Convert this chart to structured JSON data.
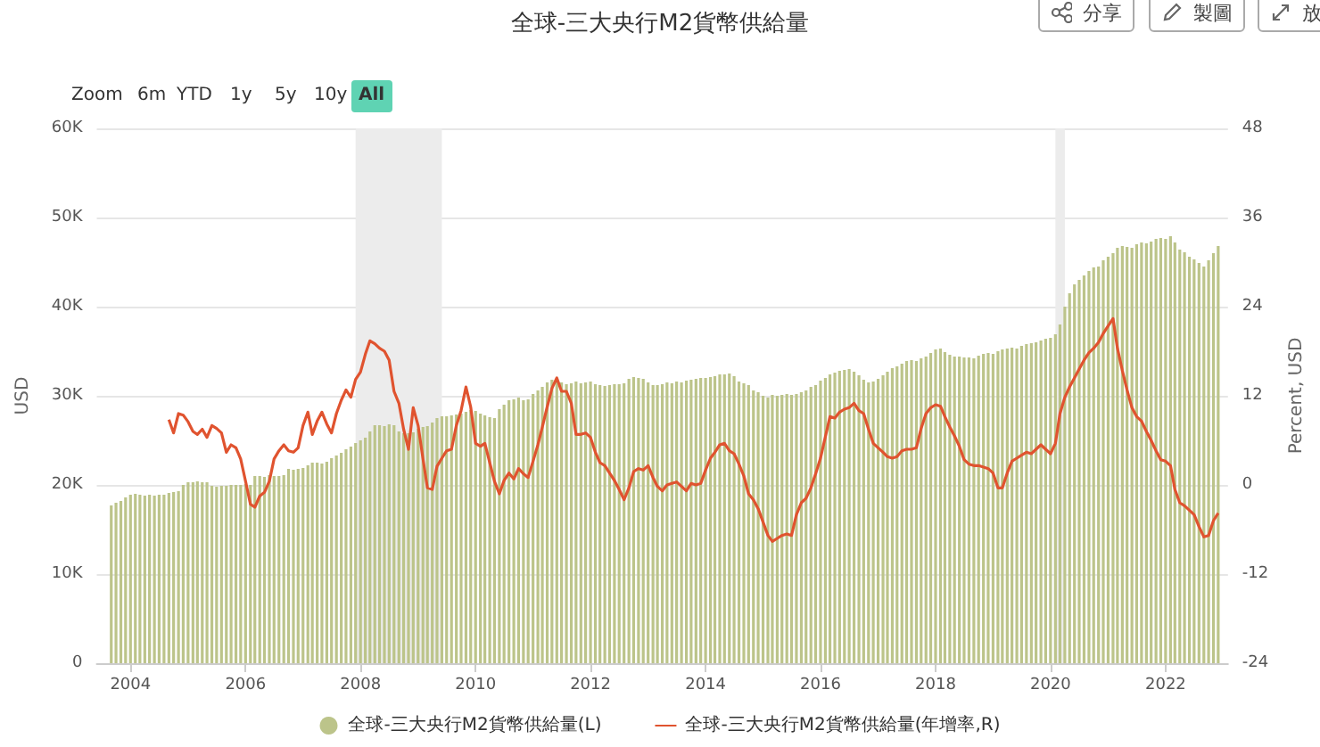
{
  "chart_data": {
    "type": "bar",
    "title": "全球-三大央行M2貨幣供給量",
    "ylabel": "USD",
    "y2label": "Percent, USD",
    "annotations": [
      "Zoom",
      "6m",
      "YTD",
      "1y",
      "5y",
      "10y",
      "All",
      "分享",
      "製圖",
      "放"
    ],
    "x": [
      "2003-09",
      "2003-10",
      "2003-11",
      "2003-12",
      "2004-01",
      "2004-02",
      "2004-03",
      "2004-04",
      "2004-05",
      "2004-06",
      "2004-07",
      "2004-08",
      "2004-09",
      "2004-10",
      "2004-11",
      "2004-12",
      "2005-01",
      "2005-02",
      "2005-03",
      "2005-04",
      "2005-05",
      "2005-06",
      "2005-07",
      "2005-08",
      "2005-09",
      "2005-10",
      "2005-11",
      "2005-12",
      "2006-01",
      "2006-02",
      "2006-03",
      "2006-04",
      "2006-05",
      "2006-06",
      "2006-07",
      "2006-08",
      "2006-09",
      "2006-10",
      "2006-11",
      "2006-12",
      "2007-01",
      "2007-02",
      "2007-03",
      "2007-04",
      "2007-05",
      "2007-06",
      "2007-07",
      "2007-08",
      "2007-09",
      "2007-10",
      "2007-11",
      "2007-12",
      "2008-01",
      "2008-02",
      "2008-03",
      "2008-04",
      "2008-05",
      "2008-06",
      "2008-07",
      "2008-08",
      "2008-09",
      "2008-10",
      "2008-11",
      "2008-12",
      "2009-01",
      "2009-02",
      "2009-03",
      "2009-04",
      "2009-05",
      "2009-06",
      "2009-07",
      "2009-08",
      "2009-09",
      "2009-10",
      "2009-11",
      "2009-12",
      "2010-01",
      "2010-02",
      "2010-03",
      "2010-04",
      "2010-05",
      "2010-06",
      "2010-07",
      "2010-08",
      "2010-09",
      "2010-10",
      "2010-11",
      "2010-12",
      "2011-01",
      "2011-02",
      "2011-03",
      "2011-04",
      "2011-05",
      "2011-06",
      "2011-07",
      "2011-08",
      "2011-09",
      "2011-10",
      "2011-11",
      "2011-12",
      "2012-01",
      "2012-02",
      "2012-03",
      "2012-04",
      "2012-05",
      "2012-06",
      "2012-07",
      "2012-08",
      "2012-09",
      "2012-10",
      "2012-11",
      "2012-12",
      "2013-01",
      "2013-02",
      "2013-03",
      "2013-04",
      "2013-05",
      "2013-06",
      "2013-07",
      "2013-08",
      "2013-09",
      "2013-10",
      "2013-11",
      "2013-12",
      "2014-01",
      "2014-02",
      "2014-03",
      "2014-04",
      "2014-05",
      "2014-06",
      "2014-07",
      "2014-08",
      "2014-09",
      "2014-10",
      "2014-11",
      "2014-12",
      "2015-01",
      "2015-02",
      "2015-03",
      "2015-04",
      "2015-05",
      "2015-06",
      "2015-07",
      "2015-08",
      "2015-09",
      "2015-10",
      "2015-11",
      "2015-12",
      "2016-01",
      "2016-02",
      "2016-03",
      "2016-04",
      "2016-05",
      "2016-06",
      "2016-07",
      "2016-08",
      "2016-09",
      "2016-10",
      "2016-11",
      "2016-12",
      "2017-01",
      "2017-02",
      "2017-03",
      "2017-04",
      "2017-05",
      "2017-06",
      "2017-07",
      "2017-08",
      "2017-09",
      "2017-10",
      "2017-11",
      "2017-12",
      "2018-01",
      "2018-02",
      "2018-03",
      "2018-04",
      "2018-05",
      "2018-06",
      "2018-07",
      "2018-08",
      "2018-09",
      "2018-10",
      "2018-11",
      "2018-12",
      "2019-01",
      "2019-02",
      "2019-03",
      "2019-04",
      "2019-05",
      "2019-06",
      "2019-07",
      "2019-08",
      "2019-09",
      "2019-10",
      "2019-11",
      "2019-12",
      "2020-01",
      "2020-02",
      "2020-03",
      "2020-04",
      "2020-05",
      "2020-06",
      "2020-07",
      "2020-08",
      "2020-09",
      "2020-10",
      "2020-11",
      "2020-12",
      "2021-01",
      "2021-02",
      "2021-03",
      "2021-04",
      "2021-05",
      "2021-06",
      "2021-07",
      "2021-08",
      "2021-09",
      "2021-10",
      "2021-11",
      "2021-12",
      "2022-01",
      "2022-02",
      "2022-03",
      "2022-04",
      "2022-05",
      "2022-06",
      "2022-07",
      "2022-08",
      "2022-09",
      "2022-10",
      "2022-11",
      "2022-12"
    ],
    "series": [
      {
        "name": "全球-三大央行M2貨幣供給量(L)",
        "color": "#bcc48a",
        "values": [
          17700,
          18000,
          18200,
          18600,
          18900,
          19000,
          18900,
          18800,
          18900,
          18800,
          18900,
          18900,
          19100,
          19200,
          19300,
          20000,
          20300,
          20300,
          20400,
          20300,
          20300,
          19900,
          19800,
          19900,
          19900,
          20000,
          20000,
          20000,
          20100,
          20000,
          21000,
          21000,
          20900,
          21100,
          21000,
          21000,
          21100,
          21800,
          21700,
          21800,
          21900,
          22200,
          22500,
          22500,
          22400,
          22600,
          23000,
          23300,
          23600,
          24000,
          24300,
          24700,
          25000,
          25300,
          26000,
          26700,
          26700,
          26600,
          26800,
          26700,
          26000,
          25800,
          25800,
          25900,
          26300,
          26500,
          26600,
          27000,
          27500,
          27700,
          27700,
          27800,
          27900,
          28000,
          28200,
          28400,
          28300,
          28000,
          27800,
          27600,
          27500,
          28500,
          29000,
          29500,
          29600,
          29800,
          29500,
          29600,
          30200,
          30600,
          31000,
          31500,
          31800,
          31600,
          31500,
          31300,
          31400,
          31600,
          31400,
          31500,
          31600,
          31300,
          31200,
          31100,
          31200,
          31300,
          31300,
          31400,
          31900,
          32100,
          32000,
          31900,
          31500,
          31200,
          31200,
          31300,
          31500,
          31400,
          31600,
          31500,
          31700,
          31800,
          31900,
          32000,
          32000,
          32100,
          32200,
          32400,
          32400,
          32500,
          32200,
          31600,
          31400,
          31200,
          30600,
          30400,
          30000,
          29800,
          30100,
          30000,
          30100,
          30200,
          30100,
          30200,
          30400,
          30600,
          31000,
          31200,
          31700,
          32000,
          32400,
          32600,
          32800,
          32900,
          33000,
          32700,
          32300,
          31800,
          31500,
          31600,
          31900,
          32300,
          32700,
          33100,
          33300,
          33600,
          33900,
          34000,
          33900,
          34200,
          34400,
          34800,
          35200,
          35300,
          34900,
          34600,
          34400,
          34400,
          34300,
          34300,
          34200,
          34500,
          34700,
          34800,
          34700,
          35000,
          35200,
          35300,
          35400,
          35300,
          35600,
          35800,
          35900,
          36000,
          36200,
          36400,
          36500,
          36900,
          38000,
          40000,
          41500,
          42500,
          43000,
          43500,
          44000,
          44400,
          44500,
          45200,
          45600,
          46000,
          46600,
          46800,
          46700,
          46600,
          47000,
          47200,
          47100,
          47300,
          47600,
          47700,
          47600,
          47900,
          47200,
          46400,
          46100,
          45600,
          45300,
          44900,
          44500,
          45200,
          46000,
          46800
        ]
      },
      {
        "name": "全球-三大央行M2貨幣供給量(年增率,R)",
        "type": "line",
        "axis": "y2",
        "color": "#e0532f",
        "values": [
          null,
          null,
          null,
          null,
          null,
          null,
          null,
          null,
          null,
          null,
          null,
          null,
          8.8,
          7.0,
          9.6,
          9.4,
          8.5,
          7.2,
          6.8,
          7.5,
          6.4,
          8.0,
          7.6,
          7.0,
          4.4,
          5.4,
          5.0,
          3.5,
          0.5,
          -2.6,
          -3.0,
          -1.5,
          -1.0,
          0.5,
          3.5,
          4.6,
          5.4,
          4.6,
          4.4,
          5.0,
          8.0,
          9.8,
          6.8,
          8.6,
          9.8,
          8.2,
          7.0,
          9.6,
          11.4,
          12.8,
          11.8,
          14.2,
          15.2,
          17.6,
          19.4,
          19.0,
          18.4,
          18.0,
          16.8,
          12.6,
          11.0,
          7.5,
          4.8,
          10.4,
          8.0,
          3.5,
          -0.4,
          -0.6,
          2.5,
          3.6,
          4.6,
          4.8,
          8.0,
          10.0,
          13.2,
          10.5,
          5.6,
          5.2,
          5.6,
          3.0,
          0.5,
          -1.2,
          0.6,
          1.6,
          0.8,
          2.2,
          1.5,
          1.0,
          3.2,
          5.4,
          7.8,
          10.5,
          13.0,
          14.4,
          12.6,
          12.6,
          11.0,
          6.8,
          6.8,
          7.0,
          6.4,
          4.4,
          3.0,
          2.6,
          1.6,
          0.6,
          -0.6,
          -2.0,
          -0.4,
          1.8,
          2.2,
          2.0,
          2.6,
          1.0,
          -0.2,
          -0.8,
          0.0,
          0.2,
          0.4,
          -0.2,
          -0.8,
          0.2,
          0.0,
          0.2,
          2.0,
          3.6,
          4.4,
          5.4,
          5.6,
          4.6,
          4.2,
          2.8,
          1.2,
          -1.2,
          -2.0,
          -3.2,
          -5.0,
          -6.8,
          -7.6,
          -7.2,
          -6.8,
          -6.6,
          -6.8,
          -4.0,
          -2.4,
          -1.8,
          -0.4,
          1.5,
          3.6,
          6.5,
          9.2,
          9.0,
          9.8,
          10.2,
          10.4,
          11.0,
          10.0,
          9.6,
          7.5,
          5.6,
          5.0,
          4.4,
          3.8,
          3.6,
          3.8,
          4.6,
          4.8,
          4.8,
          5.0,
          7.6,
          9.6,
          10.4,
          10.8,
          10.6,
          9.2,
          7.8,
          6.6,
          5.2,
          3.4,
          2.8,
          2.6,
          2.6,
          2.4,
          2.2,
          1.6,
          -0.4,
          -0.4,
          1.6,
          3.2,
          3.6,
          4.0,
          4.4,
          4.2,
          4.8,
          5.4,
          4.8,
          4.2,
          5.6,
          9.6,
          11.8,
          13.2,
          14.4,
          15.6,
          16.8,
          17.8,
          18.4,
          19.2,
          20.4,
          21.4,
          22.4,
          18.4,
          15.4,
          12.8,
          10.4,
          9.2,
          8.6,
          7.2,
          6.0,
          4.6,
          3.4,
          3.2,
          2.6,
          -0.6,
          -2.4,
          -2.8,
          -3.4,
          -4.0,
          -5.6,
          -7.0,
          -6.8,
          -4.8,
          -3.8
        ]
      }
    ],
    "xlim": [
      "2003-06",
      "2023-02"
    ],
    "xticks": [
      "2004",
      "2006",
      "2008",
      "2010",
      "2012",
      "2014",
      "2016",
      "2018",
      "2020",
      "2022"
    ],
    "ylim": [
      0,
      60000
    ],
    "yticks": [
      0,
      {
        "value": 10000,
        "label": "10K"
      },
      {
        "value": 20000,
        "label": "20K"
      },
      {
        "value": 30000,
        "label": "30K"
      },
      {
        "value": 40000,
        "label": "40K"
      },
      {
        "value": 50000,
        "label": "50K"
      },
      {
        "value": 60000,
        "label": "60K"
      }
    ],
    "y2lim": [
      -24,
      48
    ],
    "y2ticks": [
      -24,
      -12,
      0,
      12,
      24,
      36,
      48
    ],
    "bands": [
      {
        "axis": "x",
        "from": "2007-12",
        "to": "2009-06",
        "color": "#ececec"
      },
      {
        "axis": "x",
        "from": "2020-02",
        "to": "2020-04",
        "color": "#ececec"
      }
    ],
    "grid": "y",
    "legend": "bottom"
  }
}
